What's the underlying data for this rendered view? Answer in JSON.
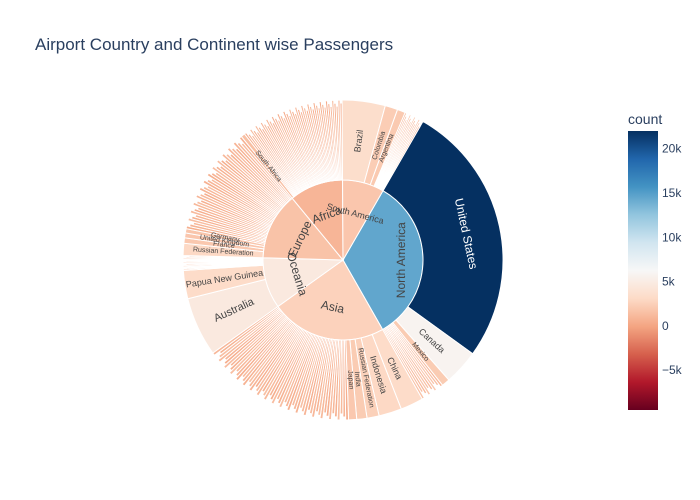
{
  "chart_data": {
    "type": "sunburst",
    "title": "Airport Country and Continent wise Passengers",
    "colorbar": {
      "title": "count",
      "range": [
        -9500,
        22000
      ],
      "ticks": [
        {
          "value": 20000,
          "label": "20k"
        },
        {
          "value": 15000,
          "label": "15k"
        },
        {
          "value": 10000,
          "label": "10k"
        },
        {
          "value": 5000,
          "label": "5k"
        },
        {
          "value": 0,
          "label": "0"
        },
        {
          "value": -5000,
          "label": "−5k"
        }
      ],
      "colorscale": [
        [
          0.0,
          "#67001f"
        ],
        [
          0.1,
          "#b2182b"
        ],
        [
          0.2,
          "#d6604d"
        ],
        [
          0.3,
          "#f4a582"
        ],
        [
          0.4,
          "#fddbc7"
        ],
        [
          0.5,
          "#f7f7f7"
        ],
        [
          0.6,
          "#d1e5f0"
        ],
        [
          0.7,
          "#92c5de"
        ],
        [
          0.8,
          "#4393c3"
        ],
        [
          0.9,
          "#2166ac"
        ],
        [
          1.0,
          "#053061"
        ]
      ]
    },
    "continents": [
      {
        "name": "North America",
        "value": 12300,
        "color_value": 14500,
        "countries": [
          {
            "name": "United States",
            "value": 9800,
            "color_value": 22000
          },
          {
            "name": "Canada",
            "value": 1300,
            "color_value": 5800
          },
          {
            "name": "Mexico",
            "value": 300,
            "color_value": 2200
          },
          {
            "name": "",
            "value": 900,
            "color_value": 1500,
            "fine": 10
          }
        ]
      },
      {
        "name": "Asia",
        "value": 8600,
        "color_value": 2600,
        "countries": [
          {
            "name": "China",
            "value": 850,
            "color_value": 3200
          },
          {
            "name": "Indonesia",
            "value": 850,
            "color_value": 3000
          },
          {
            "name": "Russian Federation",
            "value": 450,
            "color_value": 2500
          },
          {
            "name": "India",
            "value": 380,
            "color_value": 2200
          },
          {
            "name": "Japan",
            "value": 300,
            "color_value": 2000
          },
          {
            "name": "",
            "value": 5770,
            "color_value": 1000,
            "fine": 55
          }
        ]
      },
      {
        "name": "Oceania",
        "value": 3800,
        "color_value": 4700,
        "countries": [
          {
            "name": "Australia",
            "value": 2200,
            "color_value": 4700
          },
          {
            "name": "Papua New Guinea",
            "value": 1050,
            "color_value": 3200
          },
          {
            "name": "",
            "value": 550,
            "color_value": 1200,
            "fine": 12
          }
        ]
      },
      {
        "name": "Europe",
        "value": 5000,
        "color_value": 1700,
        "countries": [
          {
            "name": "Russian Federation",
            "value": 450,
            "color_value": 3000
          },
          {
            "name": "France",
            "value": 200,
            "color_value": 2000
          },
          {
            "name": "United Kingdom",
            "value": 180,
            "color_value": 1900
          },
          {
            "name": "Germany",
            "value": 160,
            "color_value": 1800
          },
          {
            "name": "",
            "value": 4010,
            "color_value": 900,
            "fine": 40
          }
        ]
      },
      {
        "name": "Africa",
        "value": 4000,
        "color_value": 900,
        "countries": [
          {
            "name": "South Africa",
            "value": 150,
            "color_value": 1500
          },
          {
            "name": "",
            "value": 3850,
            "color_value": 700,
            "fine": 50
          }
        ]
      },
      {
        "name": "South America",
        "value": 3100,
        "color_value": 1900,
        "countries": [
          {
            "name": "Brazil",
            "value": 1600,
            "color_value": 3400
          },
          {
            "name": "Colombia",
            "value": 470,
            "color_value": 2300
          },
          {
            "name": "Argentina",
            "value": 300,
            "color_value": 2100
          },
          {
            "name": "",
            "value": 730,
            "color_value": 1200,
            "fine": 12
          }
        ]
      }
    ]
  }
}
